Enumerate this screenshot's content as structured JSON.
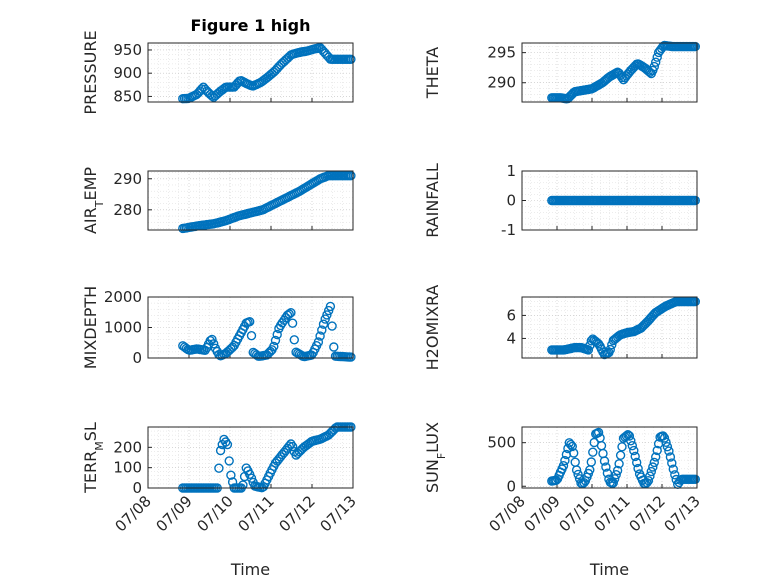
{
  "figure_title": "Figure 1 high",
  "colors": {
    "marker": "#0072BD",
    "axes": "#262626"
  },
  "x_ticks": [
    "07/08",
    "07/09",
    "07/10",
    "07/11",
    "07/12",
    "07/13"
  ],
  "x_axis_label": "Time",
  "chart_data": [
    {
      "type": "scatter",
      "id": "pressure",
      "ylabel": "PRESSURE",
      "title": "Figure 1 high",
      "ylim": [
        838,
        965
      ],
      "yticks": [
        850,
        900,
        950
      ],
      "grid": true,
      "x_range": [
        8.85,
        12.95
      ],
      "anchors": [
        [
          8.85,
          845
        ],
        [
          9.0,
          846
        ],
        [
          9.2,
          855
        ],
        [
          9.35,
          870
        ],
        [
          9.45,
          860
        ],
        [
          9.6,
          848
        ],
        [
          9.75,
          860
        ],
        [
          9.9,
          870
        ],
        [
          10.1,
          870
        ],
        [
          10.25,
          885
        ],
        [
          10.4,
          878
        ],
        [
          10.55,
          872
        ],
        [
          10.75,
          880
        ],
        [
          10.9,
          890
        ],
        [
          11.1,
          905
        ],
        [
          11.2,
          915
        ],
        [
          11.35,
          928
        ],
        [
          11.5,
          940
        ],
        [
          11.7,
          945
        ],
        [
          11.9,
          948
        ],
        [
          12.05,
          952
        ],
        [
          12.2,
          955
        ],
        [
          12.3,
          945
        ],
        [
          12.45,
          930
        ]
      ]
    },
    {
      "type": "scatter",
      "id": "theta",
      "ylabel": "THETA",
      "ylim": [
        286.8,
        296.6
      ],
      "yticks": [
        290,
        295
      ],
      "grid": true,
      "x_range": [
        8.85,
        12.95
      ],
      "anchors": [
        [
          8.85,
          287.5
        ],
        [
          9.1,
          287.5
        ],
        [
          9.3,
          287.3
        ],
        [
          9.5,
          288.5
        ],
        [
          9.8,
          288.8
        ],
        [
          10.0,
          289.0
        ],
        [
          10.3,
          290.0
        ],
        [
          10.5,
          291.0
        ],
        [
          10.75,
          291.8
        ],
        [
          10.9,
          290.5
        ],
        [
          11.1,
          292.0
        ],
        [
          11.3,
          293.2
        ],
        [
          11.5,
          292.5
        ],
        [
          11.7,
          291.5
        ],
        [
          11.8,
          293.0
        ],
        [
          11.9,
          295.0
        ],
        [
          12.05,
          296.2
        ],
        [
          12.3,
          296.0
        ]
      ]
    },
    {
      "type": "scatter",
      "id": "air_temp",
      "ylabel": "AIR_TEMP",
      "ylim": [
        273.5,
        292.5
      ],
      "yticks": [
        280,
        290
      ],
      "grid": true,
      "x_range": [
        8.85,
        12.95
      ],
      "anchors": [
        [
          8.85,
          274
        ],
        [
          9.3,
          275
        ],
        [
          9.6,
          275.5
        ],
        [
          9.9,
          276.5
        ],
        [
          10.2,
          278
        ],
        [
          10.5,
          279
        ],
        [
          10.8,
          280
        ],
        [
          11.1,
          282
        ],
        [
          11.4,
          284
        ],
        [
          11.7,
          286
        ],
        [
          11.95,
          288
        ],
        [
          12.2,
          290
        ],
        [
          12.4,
          291
        ]
      ]
    },
    {
      "type": "scatter",
      "id": "rainfall",
      "ylabel": "RAINFALL",
      "ylim": [
        -1,
        1
      ],
      "yticks": [
        -1,
        0,
        1
      ],
      "grid": true,
      "x_range": [
        8.85,
        12.95
      ],
      "anchors": [
        [
          8.85,
          0
        ],
        [
          12.95,
          0
        ]
      ]
    },
    {
      "type": "scatter",
      "id": "mixdepth",
      "ylabel": "MIXDEPTH",
      "ylim": [
        0,
        2000
      ],
      "yticks": [
        0,
        1000,
        2000
      ],
      "grid": true,
      "x_range": [
        8.85,
        12.95
      ],
      "anchors": [
        [
          8.85,
          400
        ],
        [
          9.0,
          250
        ],
        [
          9.2,
          300
        ],
        [
          9.4,
          250
        ],
        [
          9.55,
          650
        ],
        [
          9.65,
          300
        ],
        [
          9.75,
          60
        ],
        [
          9.9,
          150
        ],
        [
          10.1,
          400
        ],
        [
          10.3,
          900
        ],
        [
          10.4,
          1150
        ],
        [
          10.5,
          1200
        ],
        [
          10.55,
          200
        ],
        [
          10.7,
          50
        ],
        [
          10.9,
          100
        ],
        [
          11.05,
          300
        ],
        [
          11.2,
          1000
        ],
        [
          11.4,
          1400
        ],
        [
          11.5,
          1500
        ],
        [
          11.6,
          200
        ],
        [
          11.8,
          40
        ],
        [
          12.0,
          100
        ],
        [
          12.15,
          500
        ],
        [
          12.3,
          1200
        ],
        [
          12.45,
          1700
        ],
        [
          12.55,
          60
        ],
        [
          12.95,
          30
        ]
      ]
    },
    {
      "type": "scatter",
      "id": "h2omixra",
      "ylabel": "H2OMIXRA",
      "ylim": [
        2.3,
        7.6
      ],
      "yticks": [
        4,
        6
      ],
      "grid": true,
      "x_range": [
        8.85,
        12.95
      ],
      "anchors": [
        [
          8.85,
          3.0
        ],
        [
          9.2,
          3.0
        ],
        [
          9.5,
          3.2
        ],
        [
          9.7,
          3.2
        ],
        [
          9.9,
          3.0
        ],
        [
          10.0,
          4.0
        ],
        [
          10.2,
          3.5
        ],
        [
          10.35,
          2.6
        ],
        [
          10.5,
          2.8
        ],
        [
          10.6,
          3.8
        ],
        [
          10.8,
          4.3
        ],
        [
          11.0,
          4.5
        ],
        [
          11.2,
          4.6
        ],
        [
          11.4,
          4.9
        ],
        [
          11.6,
          5.5
        ],
        [
          11.8,
          6.2
        ],
        [
          12.1,
          6.8
        ],
        [
          12.4,
          7.2
        ]
      ]
    },
    {
      "type": "scatter",
      "id": "terr_msl",
      "ylabel": "TERR_MSL",
      "ylim": [
        0,
        300
      ],
      "yticks": [
        0,
        100,
        200
      ],
      "grid": true,
      "x_range": [
        8.85,
        12.95
      ],
      "anchors": [
        [
          8.85,
          0
        ],
        [
          9.7,
          0
        ],
        [
          9.75,
          170
        ],
        [
          9.85,
          240
        ],
        [
          9.95,
          210
        ],
        [
          10.0,
          80
        ],
        [
          10.1,
          0
        ],
        [
          10.3,
          0
        ],
        [
          10.4,
          100
        ],
        [
          10.5,
          60
        ],
        [
          10.6,
          10
        ],
        [
          10.8,
          0
        ],
        [
          10.95,
          60
        ],
        [
          11.1,
          120
        ],
        [
          11.3,
          170
        ],
        [
          11.5,
          220
        ],
        [
          11.6,
          160
        ],
        [
          11.8,
          200
        ],
        [
          12.0,
          230
        ],
        [
          12.2,
          240
        ],
        [
          12.4,
          260
        ],
        [
          12.6,
          300
        ]
      ]
    },
    {
      "type": "scatter",
      "id": "sun_flux",
      "ylabel": "SUN_FLUX",
      "ylim": [
        -20,
        680
      ],
      "yticks": [
        0,
        500
      ],
      "grid": true,
      "x_range": [
        8.85,
        12.95
      ],
      "anchors": [
        [
          8.85,
          60
        ],
        [
          9.0,
          70
        ],
        [
          9.2,
          250
        ],
        [
          9.35,
          500
        ],
        [
          9.45,
          450
        ],
        [
          9.55,
          200
        ],
        [
          9.7,
          20
        ],
        [
          9.8,
          50
        ],
        [
          9.95,
          200
        ],
        [
          10.1,
          600
        ],
        [
          10.2,
          620
        ],
        [
          10.35,
          300
        ],
        [
          10.5,
          50
        ],
        [
          10.6,
          30
        ],
        [
          10.75,
          200
        ],
        [
          10.9,
          550
        ],
        [
          11.05,
          600
        ],
        [
          11.2,
          400
        ],
        [
          11.35,
          150
        ],
        [
          11.5,
          20
        ],
        [
          11.6,
          50
        ],
        [
          11.8,
          300
        ],
        [
          11.95,
          570
        ],
        [
          12.05,
          580
        ],
        [
          12.2,
          400
        ],
        [
          12.35,
          150
        ],
        [
          12.45,
          20
        ],
        [
          12.55,
          80
        ]
      ]
    }
  ]
}
